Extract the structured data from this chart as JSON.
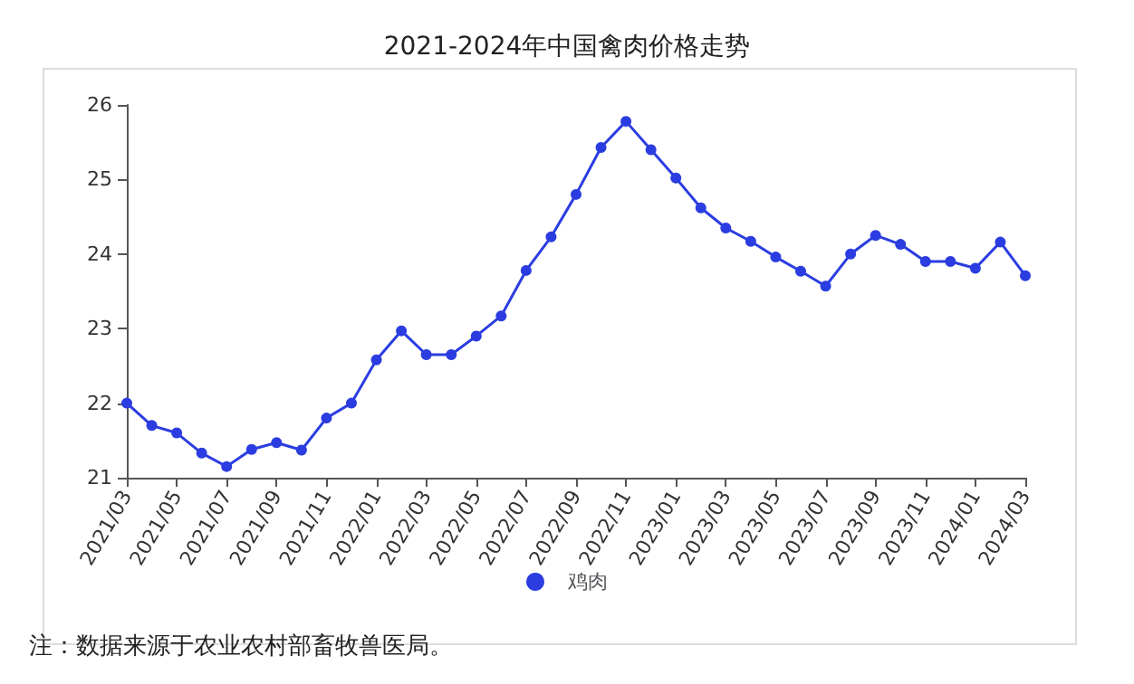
{
  "chart_data": {
    "type": "line",
    "title": "2021-2024年中国禽肉价格走势",
    "categories": [
      "2021/03",
      null,
      "2021/05",
      null,
      "2021/07",
      null,
      "2021/09",
      null,
      "2021/11",
      null,
      "2022/01",
      null,
      "2022/03",
      null,
      "2022/05",
      null,
      "2022/07",
      null,
      "2022/09",
      null,
      "2022/11",
      null,
      "2023/01",
      null,
      "2023/03",
      null,
      "2023/05",
      null,
      "2023/07",
      null,
      "2023/09",
      null,
      "2023/11",
      null,
      "2024/01",
      null,
      "2024/03"
    ],
    "series": [
      {
        "name": "鸡肉",
        "color": "#2b3de0",
        "values": [
          22.0,
          21.7,
          21.6,
          21.33,
          21.15,
          21.38,
          21.47,
          21.37,
          21.8,
          22.0,
          22.58,
          22.97,
          22.65,
          22.65,
          22.9,
          23.17,
          23.78,
          24.23,
          24.8,
          25.43,
          25.78,
          25.4,
          25.02,
          24.62,
          24.35,
          24.17,
          23.96,
          23.77,
          23.57,
          24.0,
          24.25,
          24.13,
          23.9,
          23.9,
          23.81,
          24.16,
          23.71
        ]
      }
    ],
    "ylim": [
      21,
      26
    ],
    "yticks": [
      21,
      22,
      23,
      24,
      25,
      26
    ],
    "grid": false,
    "legend": "bottom",
    "marker": "circle",
    "line_style": "solid",
    "annotations": [
      "注：数据来源于农业农村部畜牧兽医局。"
    ]
  }
}
